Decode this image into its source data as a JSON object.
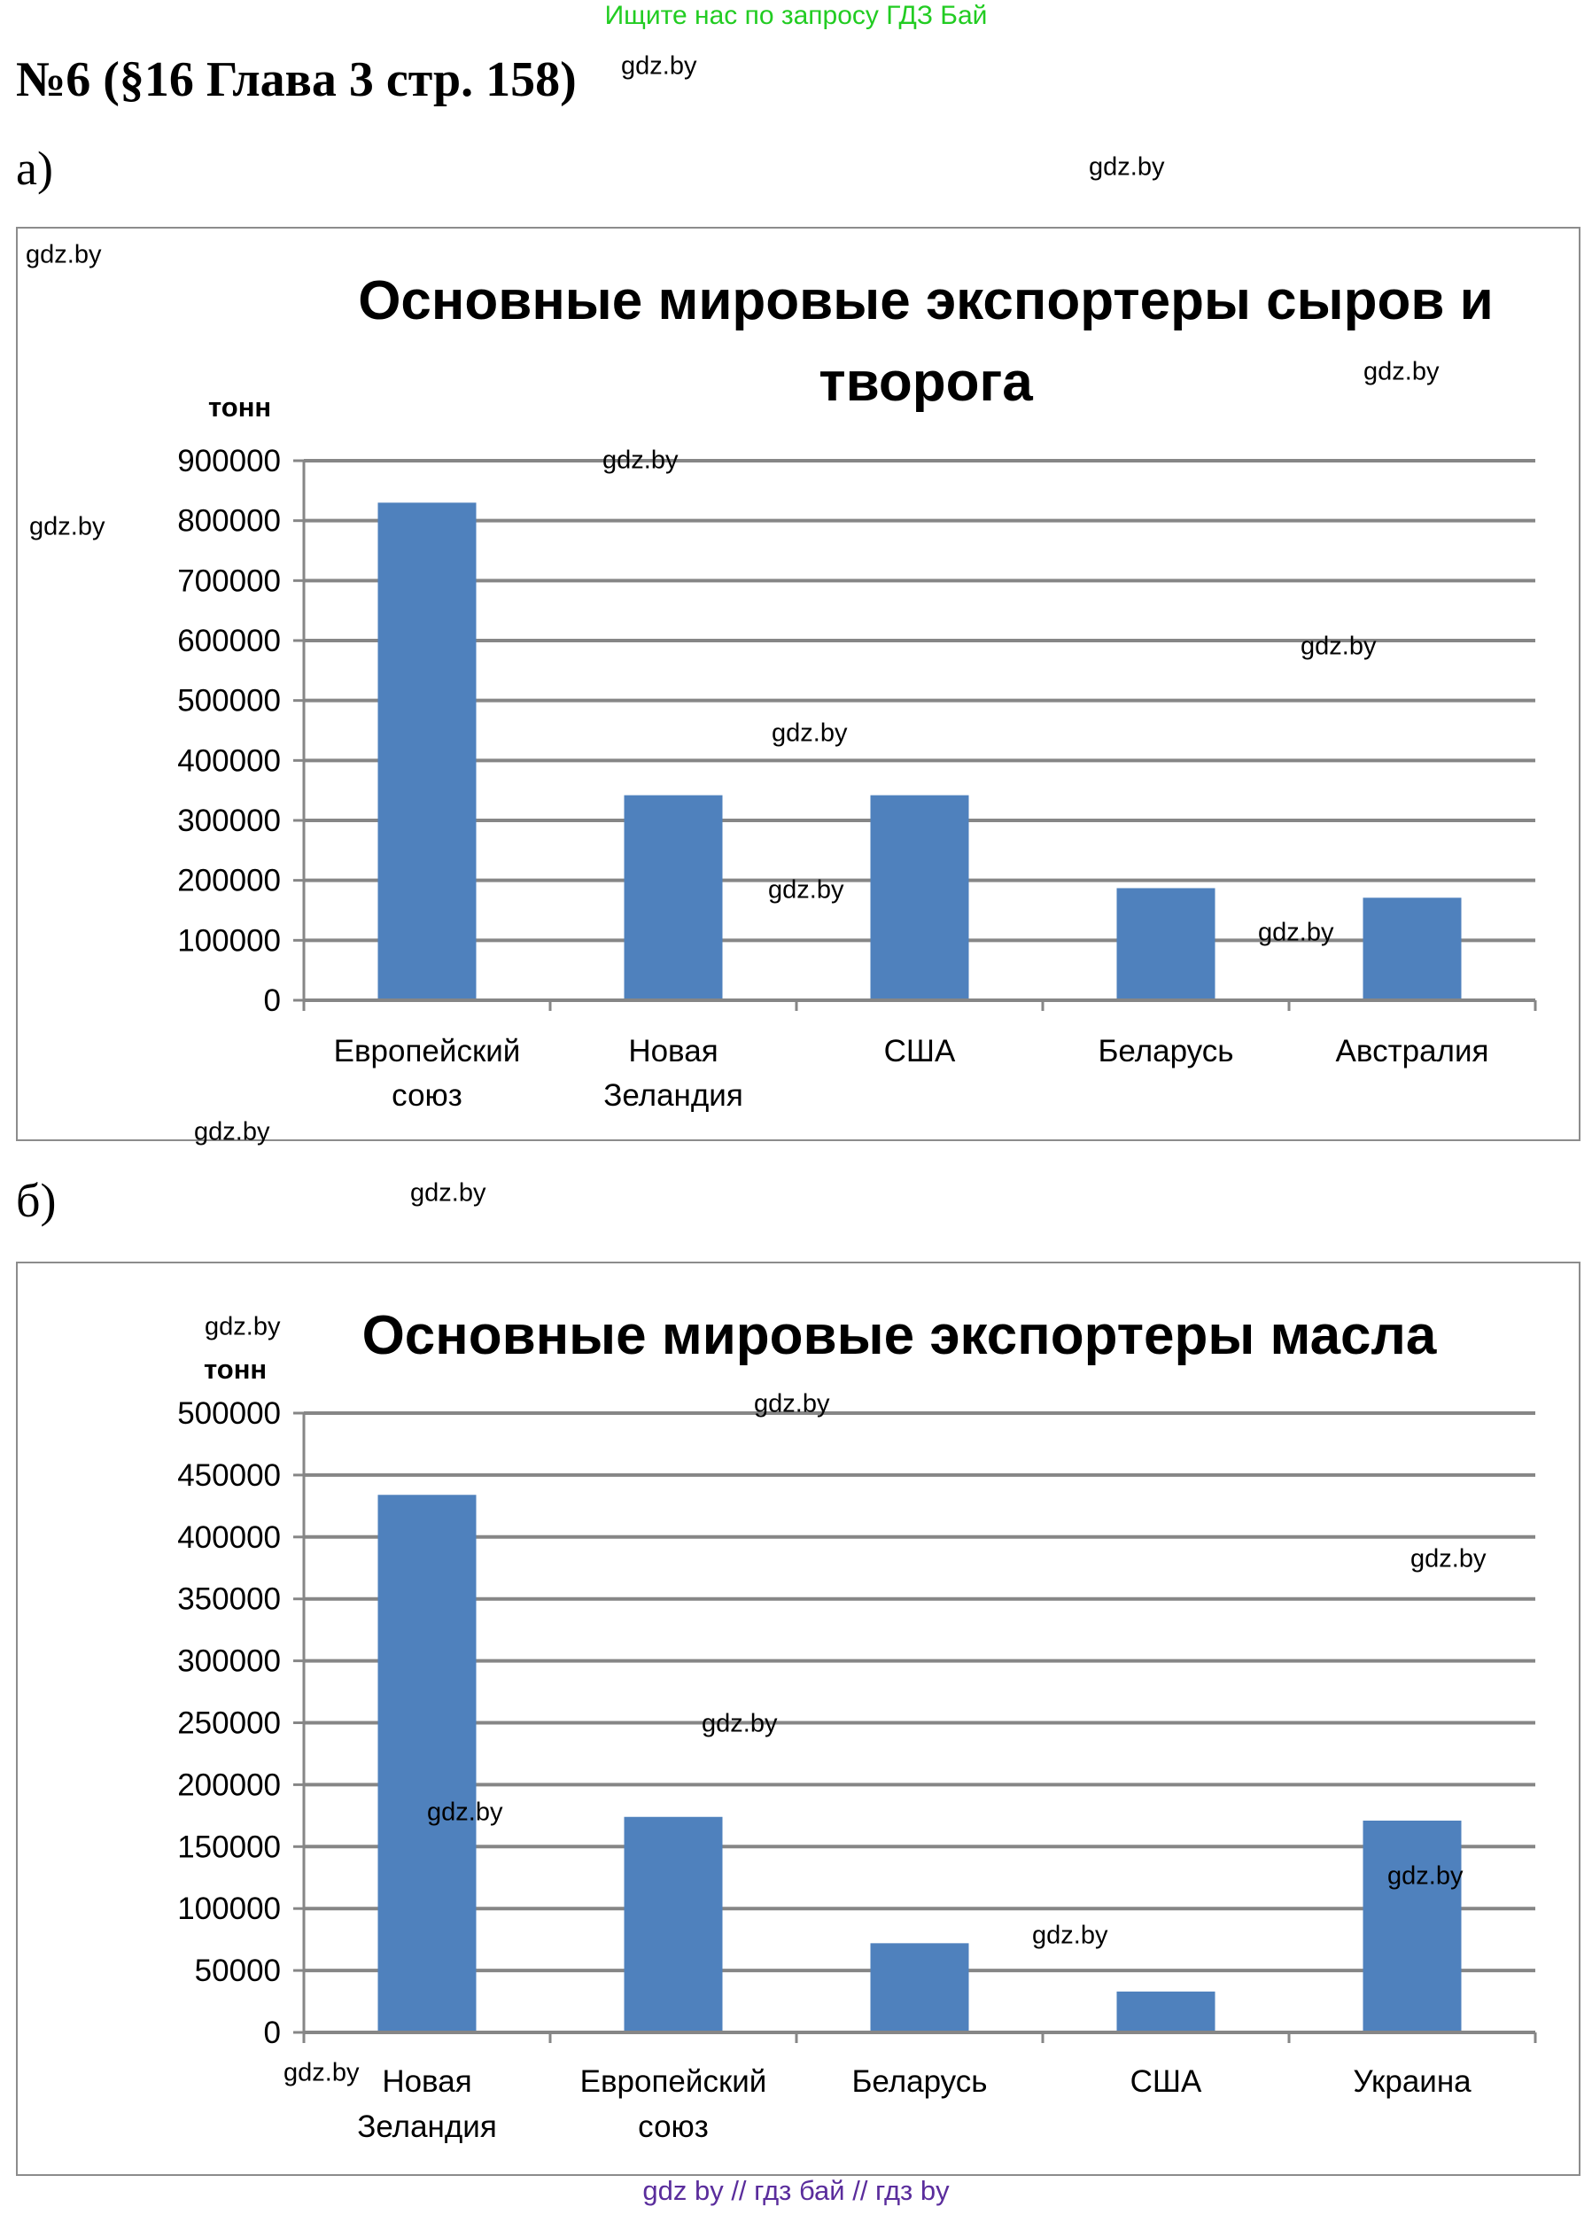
{
  "top_note": "Ищите нас по запросу ГДЗ Бай",
  "heading": "№6 (§16 Глава 3 стр. 158)",
  "watermark": "gdz.by",
  "footer": "gdz by  //  гдз бай  //  гдз by",
  "colors": {
    "bar": "#4f81bd",
    "grid": "#868686",
    "top_note": "#22cc22",
    "footer": "#5a2d9c"
  },
  "parts": [
    "а)",
    "б)"
  ],
  "chart_data": [
    {
      "type": "bar",
      "title_lines": [
        "Основные мировые экспортеры сыров и",
        "творога"
      ],
      "ylabel": "тонн",
      "categories": [
        [
          "Европейский",
          "союз"
        ],
        [
          "Новая",
          "Зеландия"
        ],
        [
          "США"
        ],
        [
          "Беларусь"
        ],
        [
          "Австралия"
        ]
      ],
      "values": [
        830000,
        342000,
        342000,
        187000,
        171000
      ],
      "ylim": [
        0,
        900000
      ],
      "yticks": [
        0,
        100000,
        200000,
        300000,
        400000,
        500000,
        600000,
        700000,
        800000,
        900000
      ],
      "grid": true,
      "legend": "none"
    },
    {
      "type": "bar",
      "title_lines": [
        "Основные мировые экспортеры масла"
      ],
      "ylabel": "тонн",
      "categories": [
        [
          "Новая",
          "Зеландия"
        ],
        [
          "Европейский",
          "союз"
        ],
        [
          "Беларусь"
        ],
        [
          "США"
        ],
        [
          "Украина"
        ]
      ],
      "values": [
        434000,
        174000,
        72000,
        33000,
        171000
      ],
      "ylim": [
        0,
        500000
      ],
      "yticks": [
        0,
        50000,
        100000,
        150000,
        200000,
        250000,
        300000,
        350000,
        400000,
        450000,
        500000
      ],
      "grid": true,
      "legend": "none"
    }
  ]
}
